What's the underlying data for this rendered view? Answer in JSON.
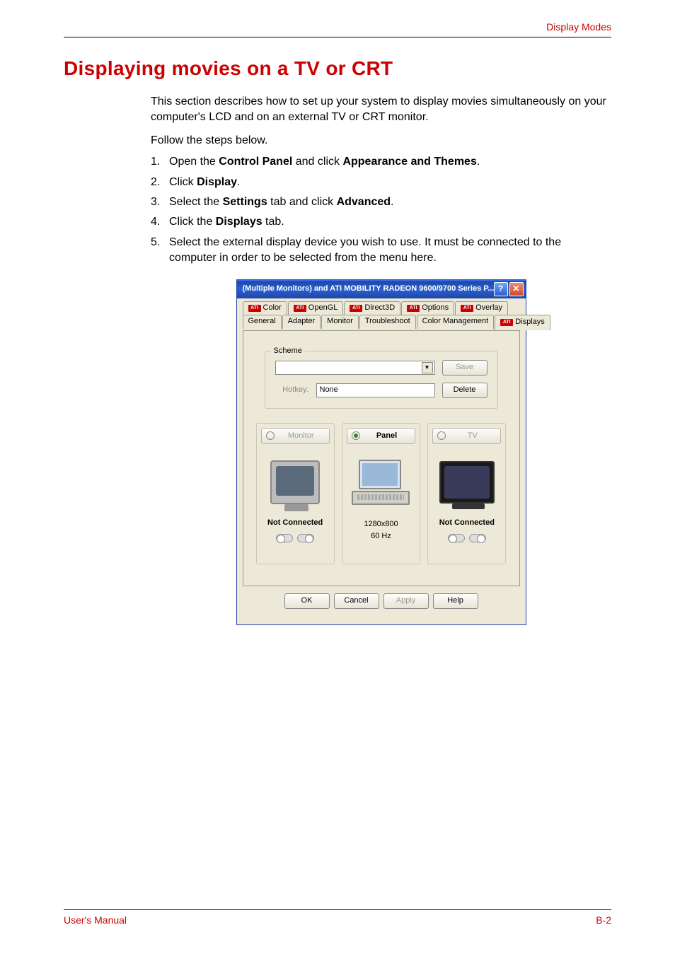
{
  "header": {
    "section_label": "Display Modes"
  },
  "heading": "Displaying movies on a TV or CRT",
  "intro": "This section describes how to set up your system to display movies simultaneously on your computer's LCD and on an external TV or CRT monitor.",
  "follow": "Follow the steps below.",
  "steps": {
    "s1_a": "Open the ",
    "s1_b": "Control Panel",
    "s1_c": " and click ",
    "s1_d": "Appearance and Themes",
    "s1_e": ".",
    "s2_a": "Click ",
    "s2_b": "Display",
    "s2_c": ".",
    "s3_a": "Select the ",
    "s3_b": "Settings",
    "s3_c": " tab and click ",
    "s3_d": "Advanced",
    "s3_e": ".",
    "s4_a": "Click the ",
    "s4_b": "Displays",
    "s4_c": " tab.",
    "s5": "Select the external display device you wish to use. It must be connected to the computer in order to be selected from the menu here."
  },
  "dialog": {
    "title": "(Multiple Monitors) and ATI MOBILITY RADEON 9600/9700 Series P...",
    "help_glyph": "?",
    "close_glyph": "✕",
    "tabs_top": {
      "t1": "Color",
      "t2": "OpenGL",
      "t3": "Direct3D",
      "t4": "Options",
      "t5": "Overlay"
    },
    "tabs_bottom": {
      "t1": "General",
      "t2": "Adapter",
      "t3": "Monitor",
      "t4": "Troubleshoot",
      "t5": "Color Management",
      "t6": "Displays"
    },
    "ati_badge": "ATI",
    "scheme": {
      "legend": "Scheme",
      "save": "Save",
      "delete": "Delete",
      "hotkey_label": "Hotkey:",
      "hotkey_value": "None"
    },
    "displays": {
      "monitor": {
        "name": "Monitor",
        "status": "Not Connected"
      },
      "panel": {
        "name": "Panel",
        "res": "1280x800",
        "hz": "60 Hz"
      },
      "tv": {
        "name": "TV",
        "status": "Not Connected"
      }
    },
    "buttons": {
      "ok": "OK",
      "cancel": "Cancel",
      "apply": "Apply",
      "help": "Help"
    }
  },
  "footer": {
    "left": "User's Manual",
    "right": "B-2"
  },
  "colors": {
    "accent": "#cc0000",
    "titlebar": "#1e48a8",
    "winface": "#ece9d8"
  }
}
